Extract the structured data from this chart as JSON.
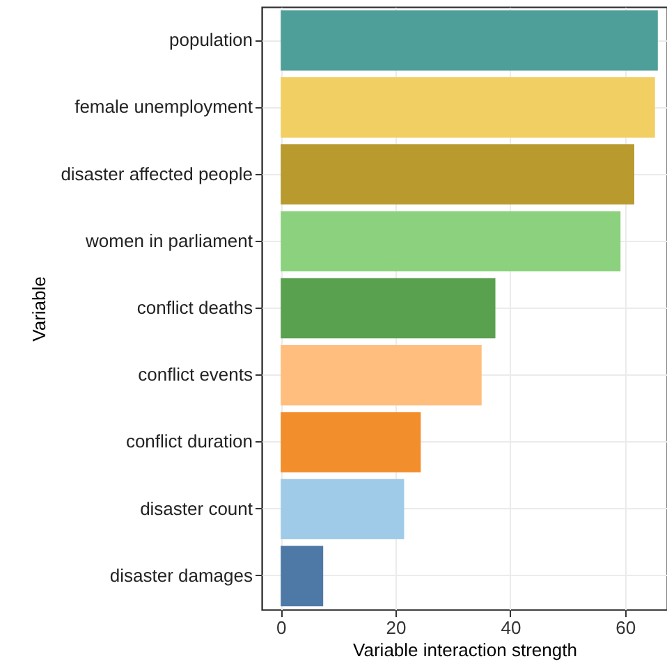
{
  "chart_data": {
    "type": "bar",
    "orientation": "horizontal",
    "xlabel": "Variable interaction strength",
    "ylabel": "Variable",
    "categories": [
      "population",
      "female unemployment",
      "disaster affected people",
      "women in parliament",
      "conflict deaths",
      "conflict events",
      "conflict duration",
      "disaster count",
      "disaster damages"
    ],
    "values": [
      65.7,
      65.2,
      61.6,
      59.2,
      37.4,
      35.0,
      24.4,
      21.5,
      7.4
    ],
    "colors": [
      "#4e9f9a",
      "#f1cf63",
      "#b89a2e",
      "#8cd17d",
      "#59a14f",
      "#ffbe7d",
      "#f28e2b",
      "#a0cbe8",
      "#4e79a7"
    ],
    "xlim": [
      -3.3,
      67.3
    ],
    "xticks": [
      0,
      20,
      40,
      60
    ],
    "grid": true
  }
}
